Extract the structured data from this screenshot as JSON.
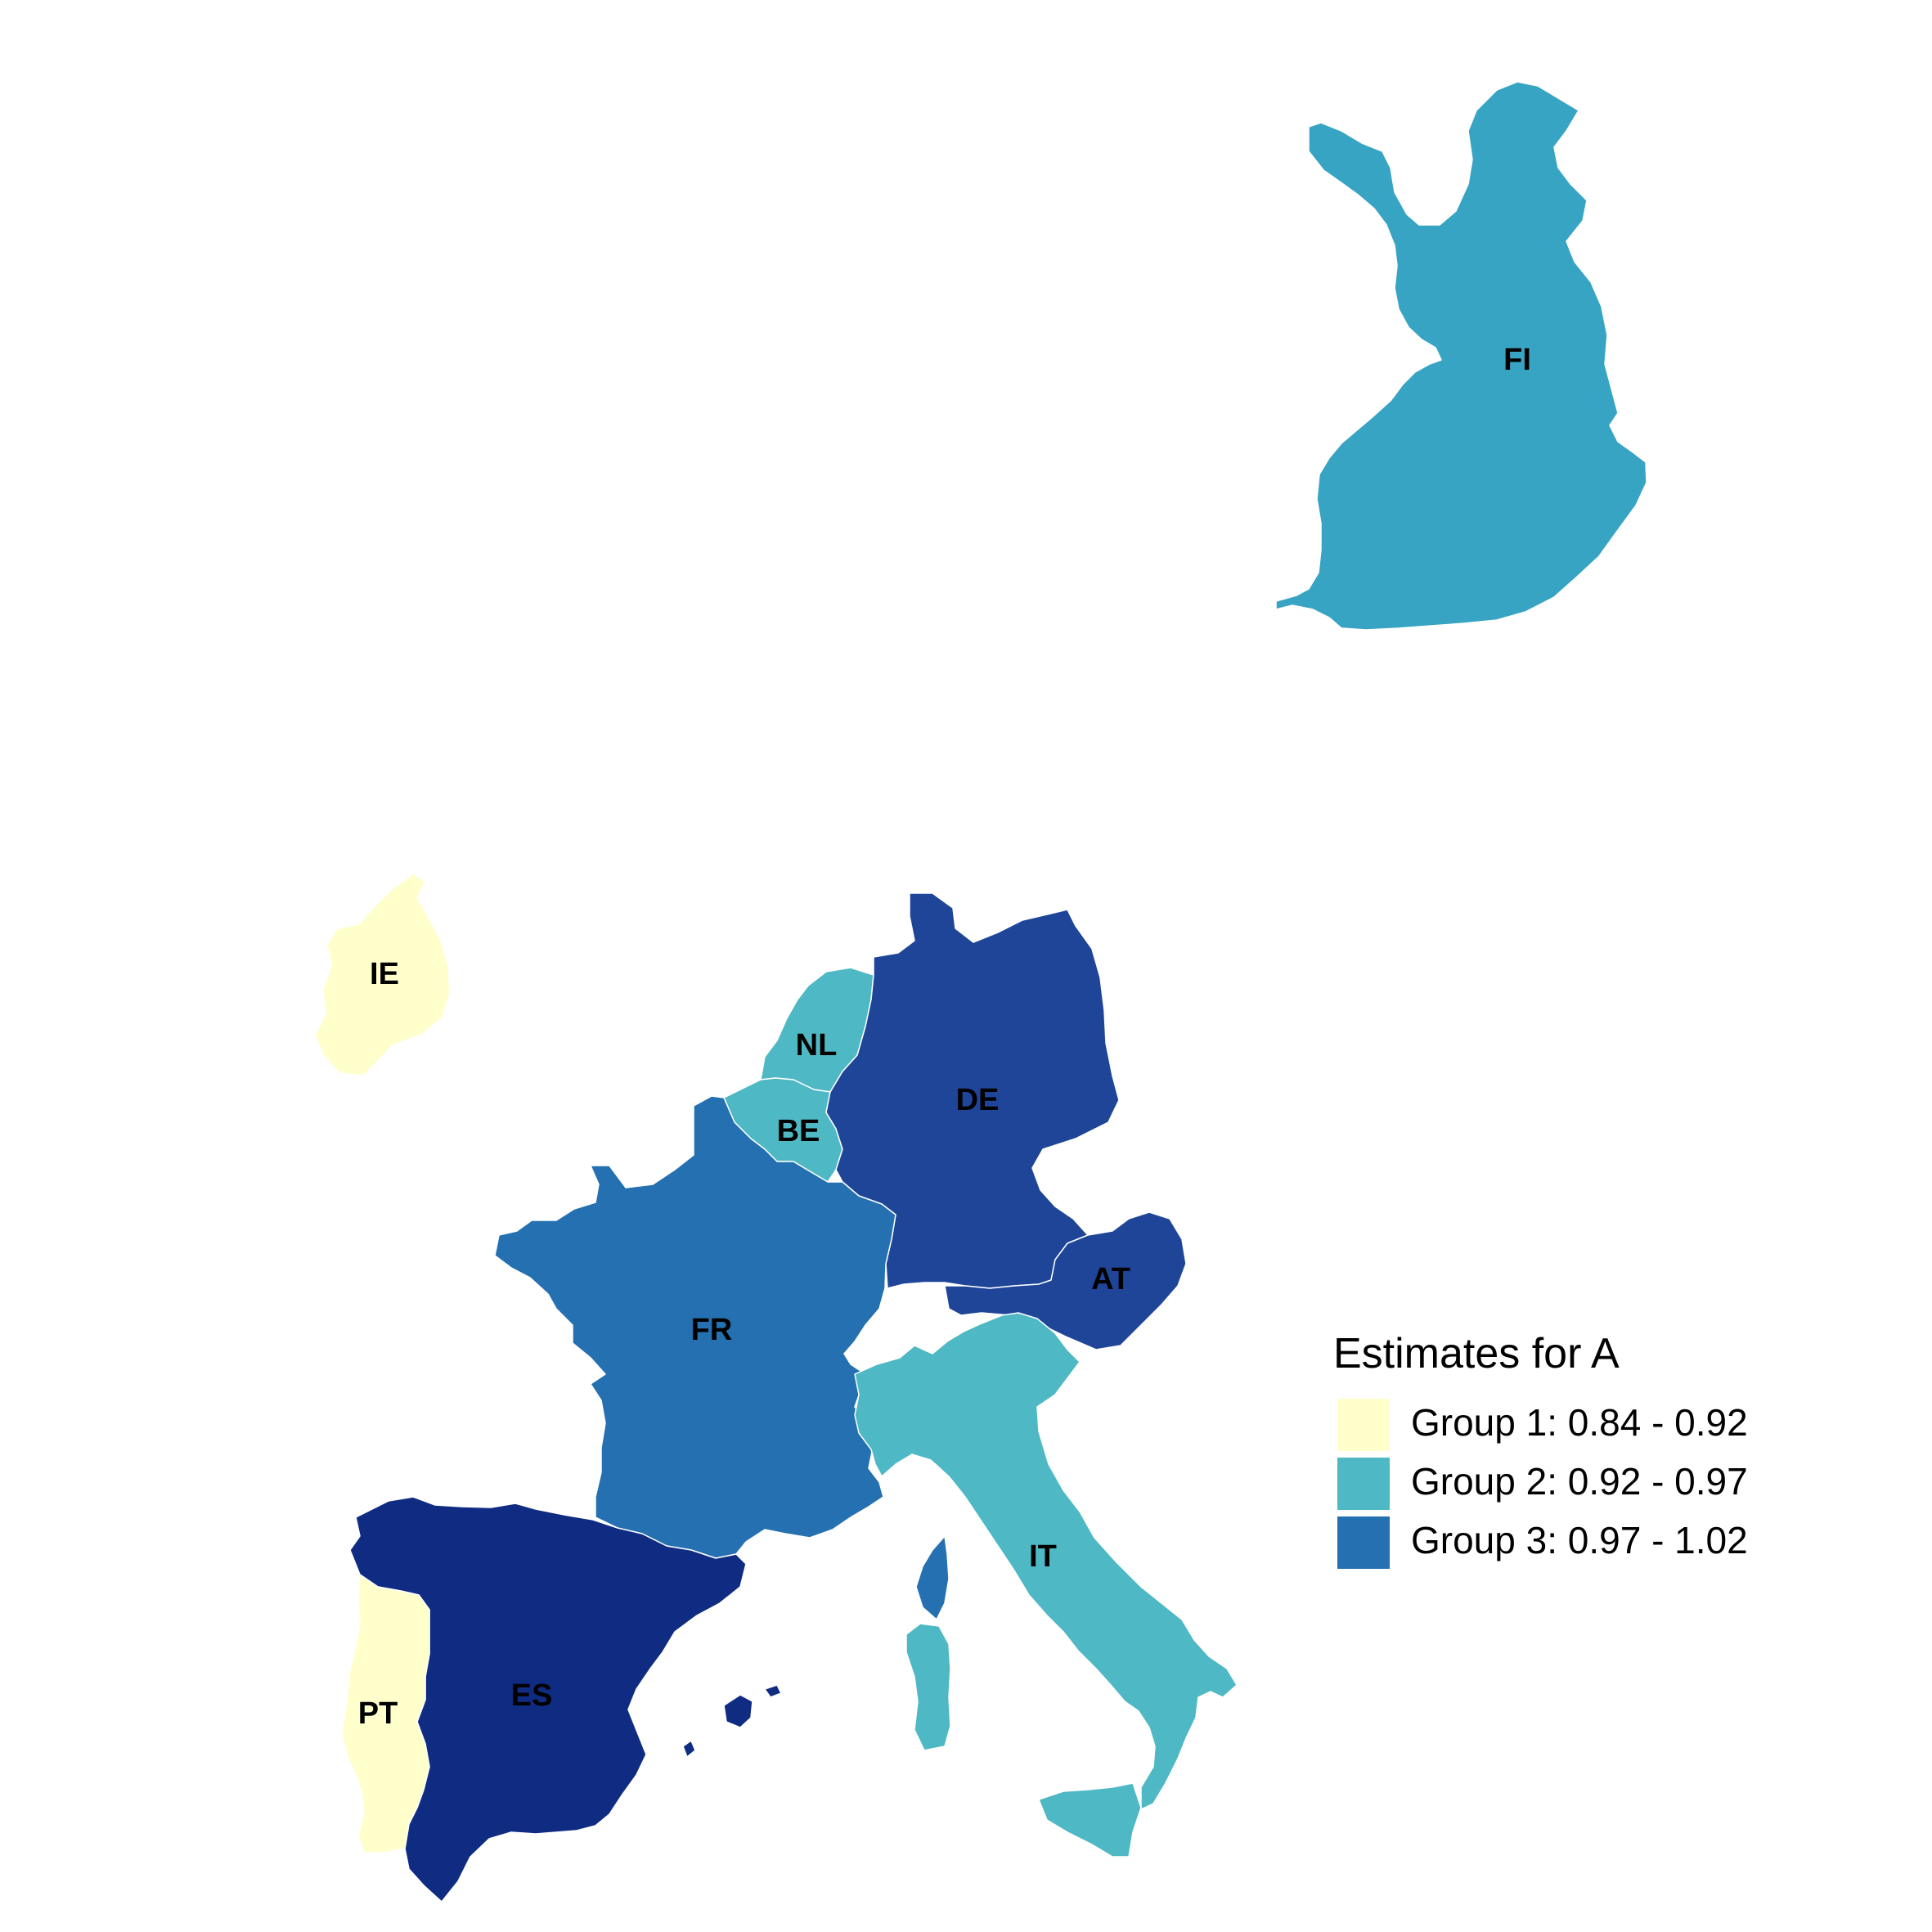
{
  "legend": {
    "title": "Estimates for A",
    "groups": [
      {
        "label": "Group 1: 0.84 - 0.92",
        "color": "#ffffcc"
      },
      {
        "label": "Group 2: 0.92 - 0.97",
        "color": "#4eb8c4"
      },
      {
        "label": "Group 3: 0.97 - 1.02",
        "color": "#2470b0"
      }
    ]
  },
  "countries": [
    {
      "code": "FI",
      "color": "#38a4c4"
    },
    {
      "code": "IE",
      "color": "#ffffcc"
    },
    {
      "code": "NL",
      "color": "#4eb8c4"
    },
    {
      "code": "BE",
      "color": "#4eb8c4"
    },
    {
      "code": "DE",
      "color": "#1e4598"
    },
    {
      "code": "AT",
      "color": "#1e4598"
    },
    {
      "code": "FR",
      "color": "#2470b0"
    },
    {
      "code": "IT",
      "color": "#4eb8c4"
    },
    {
      "code": "ES",
      "color": "#0f2c82"
    },
    {
      "code": "PT",
      "color": "#ffffcc"
    }
  ]
}
